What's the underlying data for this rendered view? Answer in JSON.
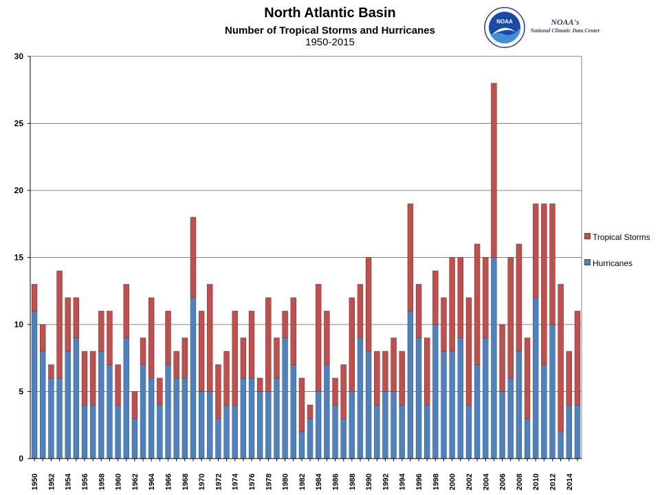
{
  "header": {
    "title": "North Atlantic Basin",
    "subtitle": "Number of Tropical Storms and Hurricanes",
    "years": "1950-2015"
  },
  "logo": {
    "agency": "NOAA",
    "line1": "NOAA's",
    "line2": "National Climatic Data Center"
  },
  "chart_data": {
    "type": "bar",
    "stacked": true,
    "ylim": [
      0,
      30
    ],
    "yticks": [
      0,
      5,
      10,
      15,
      20,
      25,
      30
    ],
    "grid": true,
    "legend_position": "right",
    "categories": [
      1950,
      1951,
      1952,
      1953,
      1954,
      1955,
      1956,
      1957,
      1958,
      1959,
      1960,
      1961,
      1962,
      1963,
      1964,
      1965,
      1966,
      1967,
      1968,
      1969,
      1970,
      1971,
      1972,
      1973,
      1974,
      1975,
      1976,
      1977,
      1978,
      1979,
      1980,
      1981,
      1982,
      1983,
      1984,
      1985,
      1986,
      1987,
      1988,
      1989,
      1990,
      1991,
      1992,
      1993,
      1994,
      1995,
      1996,
      1997,
      1998,
      1999,
      2000,
      2001,
      2002,
      2003,
      2004,
      2005,
      2006,
      2007,
      2008,
      2009,
      2010,
      2011,
      2012,
      2013,
      2014,
      2015
    ],
    "series": [
      {
        "name": "Hurricanes",
        "color": "#4f81bd",
        "values": [
          11,
          8,
          6,
          6,
          8,
          9,
          4,
          4,
          8,
          7,
          4,
          9,
          3,
          7,
          6,
          4,
          7,
          6,
          6,
          12,
          5,
          5,
          3,
          4,
          4,
          6,
          6,
          5,
          5,
          6,
          9,
          7,
          2,
          3,
          5,
          7,
          4,
          3,
          5,
          9,
          8,
          4,
          5,
          5,
          4,
          11,
          9,
          4,
          10,
          8,
          8,
          9,
          4,
          7,
          9,
          15,
          5,
          6,
          8,
          3,
          12,
          7,
          10,
          2,
          4,
          4
        ]
      },
      {
        "name": "Tropical Storms",
        "color": "#c0504d",
        "values": [
          2,
          2,
          1,
          8,
          4,
          3,
          4,
          4,
          3,
          4,
          3,
          4,
          2,
          2,
          6,
          2,
          4,
          2,
          3,
          6,
          6,
          8,
          4,
          4,
          7,
          3,
          5,
          1,
          7,
          3,
          2,
          5,
          4,
          1,
          8,
          4,
          2,
          4,
          7,
          4,
          7,
          4,
          3,
          4,
          4,
          8,
          4,
          5,
          4,
          4,
          7,
          6,
          8,
          9,
          6,
          13,
          5,
          9,
          8,
          6,
          7,
          12,
          9,
          11,
          4,
          7
        ]
      }
    ],
    "total_storms": [
      13,
      10,
      7,
      14,
      12,
      12,
      8,
      8,
      11,
      11,
      7,
      13,
      5,
      9,
      12,
      6,
      11,
      8,
      9,
      18,
      11,
      13,
      7,
      8,
      11,
      9,
      11,
      6,
      12,
      9,
      11,
      12,
      6,
      4,
      13,
      11,
      6,
      7,
      12,
      13,
      15,
      8,
      8,
      9,
      8,
      19,
      13,
      9,
      14,
      12,
      15,
      15,
      12,
      16,
      15,
      28,
      10,
      15,
      16,
      9,
      19,
      19,
      19,
      13,
      8,
      11
    ]
  }
}
